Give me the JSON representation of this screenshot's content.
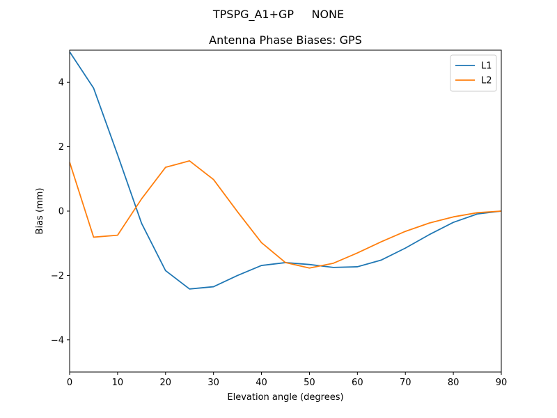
{
  "chart_data": {
    "type": "line",
    "suptitle": "TPSPG_A1+GP     NONE",
    "title": "Antenna Phase Biases: GPS",
    "xlabel": "Elevation angle (degrees)",
    "ylabel": "Bias (mm)",
    "xlim": [
      0,
      90
    ],
    "ylim": [
      -5,
      5
    ],
    "xticks": [
      0,
      10,
      20,
      30,
      40,
      50,
      60,
      70,
      80,
      90
    ],
    "yticks": [
      -4,
      -2,
      0,
      2,
      4
    ],
    "x": [
      0,
      5,
      10,
      15,
      20,
      25,
      30,
      35,
      40,
      45,
      50,
      55,
      60,
      65,
      70,
      75,
      80,
      85,
      90
    ],
    "series": [
      {
        "name": "L1",
        "color": "#1f77b4",
        "values": [
          4.95,
          3.82,
          1.75,
          -0.38,
          -1.85,
          -2.42,
          -2.35,
          -2.0,
          -1.69,
          -1.6,
          -1.66,
          -1.75,
          -1.73,
          -1.52,
          -1.15,
          -0.73,
          -0.35,
          -0.09,
          0.0
        ]
      },
      {
        "name": "L2",
        "color": "#ff7f0e",
        "values": [
          1.52,
          -0.81,
          -0.75,
          0.38,
          1.36,
          1.56,
          0.98,
          -0.02,
          -0.98,
          -1.6,
          -1.77,
          -1.62,
          -1.3,
          -0.95,
          -0.63,
          -0.37,
          -0.18,
          -0.05,
          0.0
        ]
      }
    ],
    "legend": "top-right",
    "grid": false
  }
}
